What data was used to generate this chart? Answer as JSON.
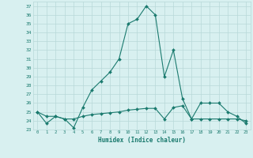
{
  "line1_x": [
    0,
    1,
    2,
    3,
    4,
    5,
    6,
    7,
    8,
    9,
    10,
    11,
    12,
    13,
    14,
    15,
    16,
    17,
    18,
    19,
    20,
    21,
    22,
    23
  ],
  "line1_y": [
    25.0,
    23.7,
    24.5,
    24.2,
    23.2,
    25.5,
    27.5,
    28.5,
    29.5,
    31.0,
    35.0,
    35.5,
    37.0,
    36.0,
    29.0,
    32.0,
    26.5,
    24.2,
    26.0,
    26.0,
    26.0,
    25.0,
    24.5,
    23.7
  ],
  "line2_x": [
    0,
    1,
    2,
    3,
    4,
    5,
    6,
    7,
    8,
    9,
    10,
    11,
    12,
    13,
    14,
    15,
    16,
    17,
    18,
    19,
    20,
    21,
    22,
    23
  ],
  "line2_y": [
    25.0,
    24.5,
    24.5,
    24.2,
    24.2,
    24.5,
    24.7,
    24.8,
    24.9,
    25.0,
    25.2,
    25.3,
    25.4,
    25.4,
    24.2,
    25.5,
    25.7,
    24.2,
    24.2,
    24.2,
    24.2,
    24.2,
    24.2,
    24.0
  ],
  "line_color": "#1a7a6e",
  "bg_color": "#d8f0f0",
  "grid_color": "#b8d8d8",
  "xlabel": "Humidex (Indice chaleur)",
  "yticks": [
    23,
    24,
    25,
    26,
    27,
    28,
    29,
    30,
    31,
    32,
    33,
    34,
    35,
    36,
    37
  ],
  "xticks": [
    0,
    1,
    2,
    3,
    4,
    5,
    6,
    7,
    8,
    9,
    10,
    11,
    12,
    13,
    14,
    15,
    16,
    17,
    18,
    19,
    20,
    21,
    22,
    23
  ],
  "xlim": [
    -0.5,
    23.5
  ],
  "ylim": [
    23,
    37.5
  ],
  "markersize": 2.0,
  "linewidth": 0.8
}
